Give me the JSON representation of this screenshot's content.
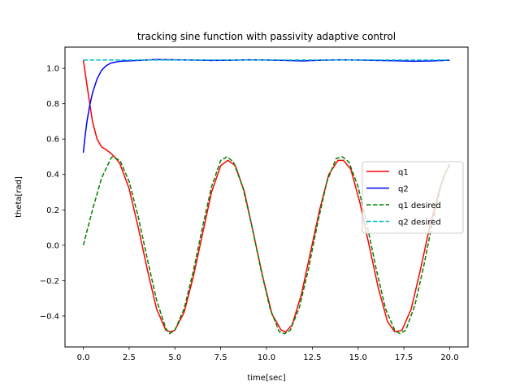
{
  "chart_data": {
    "type": "line",
    "title": "tracking sine function with passivity adaptive control",
    "xlabel": "time[sec]",
    "ylabel": "theta[rad]",
    "xlim": [
      -1.0,
      21.0
    ],
    "ylim": [
      -0.575,
      1.12
    ],
    "xticks": [
      0.0,
      2.5,
      5.0,
      7.5,
      10.0,
      12.5,
      15.0,
      17.5,
      20.0
    ],
    "xtick_labels": [
      "0.0",
      "2.5",
      "5.0",
      "7.5",
      "10.0",
      "12.5",
      "15.0",
      "17.5",
      "20.0"
    ],
    "yticks": [
      -0.4,
      -0.2,
      0.0,
      0.2,
      0.4,
      0.6,
      0.8,
      1.0
    ],
    "ytick_labels": [
      "−0.4",
      "−0.2",
      "0.0",
      "0.2",
      "0.4",
      "0.6",
      "0.8",
      "1.0"
    ],
    "grid": false,
    "legend_position": "center-right",
    "series": [
      {
        "name": "q1",
        "color": "#ff0000",
        "dash": "solid",
        "points": [
          [
            0.0,
            1.047
          ],
          [
            0.25,
            0.87
          ],
          [
            0.5,
            0.7
          ],
          [
            0.75,
            0.6
          ],
          [
            1.0,
            0.555
          ],
          [
            1.25,
            0.54
          ],
          [
            1.5,
            0.52
          ],
          [
            1.75,
            0.495
          ],
          [
            2.0,
            0.46
          ],
          [
            2.5,
            0.32
          ],
          [
            3.0,
            0.1
          ],
          [
            3.5,
            -0.14
          ],
          [
            4.0,
            -0.36
          ],
          [
            4.5,
            -0.48
          ],
          [
            4.75,
            -0.49
          ],
          [
            5.0,
            -0.48
          ],
          [
            5.5,
            -0.38
          ],
          [
            6.0,
            -0.18
          ],
          [
            6.5,
            0.06
          ],
          [
            7.0,
            0.3
          ],
          [
            7.5,
            0.45
          ],
          [
            7.9,
            0.48
          ],
          [
            8.3,
            0.45
          ],
          [
            8.8,
            0.3
          ],
          [
            9.3,
            0.06
          ],
          [
            9.8,
            -0.18
          ],
          [
            10.3,
            -0.39
          ],
          [
            10.8,
            -0.48
          ],
          [
            11.05,
            -0.49
          ],
          [
            11.4,
            -0.45
          ],
          [
            11.9,
            -0.28
          ],
          [
            12.4,
            -0.04
          ],
          [
            12.9,
            0.2
          ],
          [
            13.4,
            0.4
          ],
          [
            13.9,
            0.48
          ],
          [
            14.2,
            0.48
          ],
          [
            14.6,
            0.43
          ],
          [
            15.1,
            0.24
          ],
          [
            15.6,
            0.0
          ],
          [
            16.1,
            -0.24
          ],
          [
            16.6,
            -0.43
          ],
          [
            17.0,
            -0.49
          ],
          [
            17.4,
            -0.48
          ],
          [
            17.9,
            -0.36
          ],
          [
            18.4,
            -0.14
          ],
          [
            18.9,
            0.1
          ],
          [
            19.4,
            0.3
          ],
          [
            19.8,
            0.42
          ],
          [
            20.0,
            0.45
          ]
        ]
      },
      {
        "name": "q2",
        "color": "#0000ff",
        "dash": "solid",
        "points": [
          [
            0.0,
            0.523
          ],
          [
            0.1,
            0.62
          ],
          [
            0.2,
            0.7
          ],
          [
            0.35,
            0.79
          ],
          [
            0.5,
            0.86
          ],
          [
            0.75,
            0.94
          ],
          [
            1.0,
            0.99
          ],
          [
            1.25,
            1.015
          ],
          [
            1.5,
            1.03
          ],
          [
            2.0,
            1.04
          ],
          [
            3.0,
            1.045
          ],
          [
            4.0,
            1.05
          ],
          [
            5.0,
            1.048
          ],
          [
            6.0,
            1.047
          ],
          [
            7.0,
            1.045
          ],
          [
            8.0,
            1.046
          ],
          [
            9.0,
            1.048
          ],
          [
            10.0,
            1.047
          ],
          [
            11.0,
            1.045
          ],
          [
            12.0,
            1.042
          ],
          [
            13.0,
            1.046
          ],
          [
            14.0,
            1.048
          ],
          [
            15.0,
            1.047
          ],
          [
            16.0,
            1.045
          ],
          [
            17.0,
            1.043
          ],
          [
            18.0,
            1.04
          ],
          [
            19.0,
            1.042
          ],
          [
            20.0,
            1.046
          ]
        ]
      },
      {
        "name": "q1 desired",
        "color": "#008000",
        "dash": "dashed",
        "points": [
          [
            0.0,
            0.0
          ],
          [
            0.5,
            0.2
          ],
          [
            1.0,
            0.38
          ],
          [
            1.5,
            0.49
          ],
          [
            1.57,
            0.5
          ],
          [
            2.0,
            0.48
          ],
          [
            2.5,
            0.36
          ],
          [
            3.0,
            0.16
          ],
          [
            3.5,
            -0.08
          ],
          [
            4.0,
            -0.31
          ],
          [
            4.5,
            -0.47
          ],
          [
            4.71,
            -0.5
          ],
          [
            5.0,
            -0.48
          ],
          [
            5.5,
            -0.36
          ],
          [
            6.0,
            -0.15
          ],
          [
            6.5,
            0.1
          ],
          [
            7.0,
            0.33
          ],
          [
            7.5,
            0.48
          ],
          [
            7.85,
            0.5
          ],
          [
            8.2,
            0.47
          ],
          [
            8.7,
            0.33
          ],
          [
            9.2,
            0.11
          ],
          [
            9.7,
            -0.14
          ],
          [
            10.2,
            -0.36
          ],
          [
            10.7,
            -0.49
          ],
          [
            11.0,
            -0.5
          ],
          [
            11.3,
            -0.48
          ],
          [
            11.8,
            -0.35
          ],
          [
            12.3,
            -0.13
          ],
          [
            12.8,
            0.13
          ],
          [
            13.3,
            0.36
          ],
          [
            13.8,
            0.49
          ],
          [
            14.14,
            0.5
          ],
          [
            14.5,
            0.47
          ],
          [
            15.0,
            0.33
          ],
          [
            15.5,
            0.11
          ],
          [
            16.0,
            -0.14
          ],
          [
            16.5,
            -0.36
          ],
          [
            17.0,
            -0.48
          ],
          [
            17.28,
            -0.5
          ],
          [
            17.6,
            -0.48
          ],
          [
            18.1,
            -0.34
          ],
          [
            18.6,
            -0.11
          ],
          [
            19.1,
            0.15
          ],
          [
            19.6,
            0.37
          ],
          [
            20.0,
            0.46
          ]
        ]
      },
      {
        "name": "q2 desired",
        "color": "#00bfbf",
        "dash": "dashed",
        "points": [
          [
            0.0,
            1.047
          ],
          [
            20.0,
            1.047
          ]
        ]
      }
    ]
  }
}
